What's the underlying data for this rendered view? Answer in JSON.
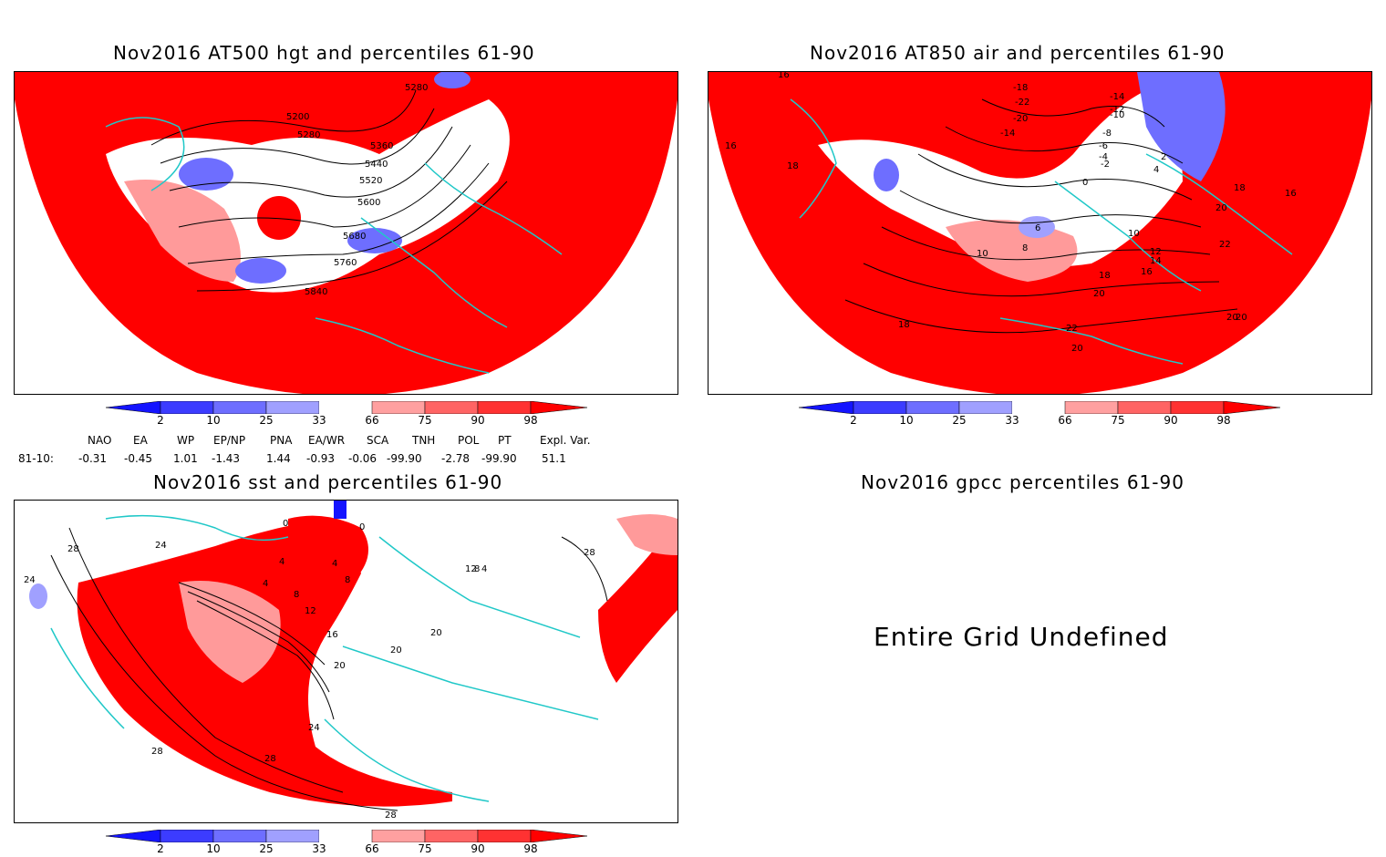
{
  "panels": {
    "hgt": {
      "title": "Nov2016 AT500 hgt and percentiles 61-90",
      "contour_labels": [
        "5280",
        "5200",
        "5280",
        "5360",
        "5440",
        "5520",
        "5600",
        "5680",
        "5760",
        "5840"
      ]
    },
    "air": {
      "title": "Nov2016 AT850 air and percentiles 61-90",
      "contour_labels": [
        "16",
        "16",
        "18",
        "-18",
        "-22",
        "-20",
        "-14",
        "-14",
        "-12",
        "-10",
        "-8",
        "-6",
        "-4",
        "-2",
        "0",
        "2",
        "4",
        "6",
        "8",
        "10",
        "10",
        "12",
        "14",
        "16",
        "18",
        "20",
        "16",
        "18",
        "20",
        "22",
        "22",
        "20",
        "20",
        "18",
        "20"
      ]
    },
    "sst": {
      "title": "Nov2016 sst and percentiles 61-90",
      "contour_labels": [
        "28",
        "24",
        "24",
        "0",
        "0",
        "4",
        "4",
        "4",
        "8",
        "8",
        "12",
        "16",
        "20",
        "20",
        "20",
        "24",
        "28",
        "28",
        "28",
        "28",
        "12",
        "8",
        "4"
      ]
    },
    "gpcc": {
      "title": "Nov2016 gpcc percentiles 61-90",
      "message": "Entire Grid Undefined"
    }
  },
  "colorbar": {
    "labels": [
      "2",
      "10",
      "25",
      "33",
      "66",
      "75",
      "90",
      "98"
    ],
    "colors": [
      "#1414ff",
      "#3c3cff",
      "#6e6eff",
      "#a0a0ff",
      "#ffffff",
      "#ffa0a0",
      "#ff6464",
      "#ff3232",
      "#ff0000"
    ]
  },
  "indices": {
    "headers": [
      "NAO",
      "EA",
      "WP",
      "EP/NP",
      "PNA",
      "EA/WR",
      "SCA",
      "TNH",
      "POL",
      "PT",
      "Expl. Var."
    ],
    "row_label": "81-10:",
    "values": [
      "-0.31",
      "-0.45",
      "1.01",
      "-1.43",
      "1.44",
      "-0.93",
      "-0.06",
      "-99.90",
      "-2.78",
      "-99.90",
      "51.1"
    ]
  },
  "colors": {
    "red_strong": "#ff0000",
    "red_mid": "#ff4040",
    "red_light": "#ff9a9a",
    "blue_mid": "#6e6eff",
    "blue_light": "#a0a0ff",
    "coast": "#20c8c8"
  }
}
